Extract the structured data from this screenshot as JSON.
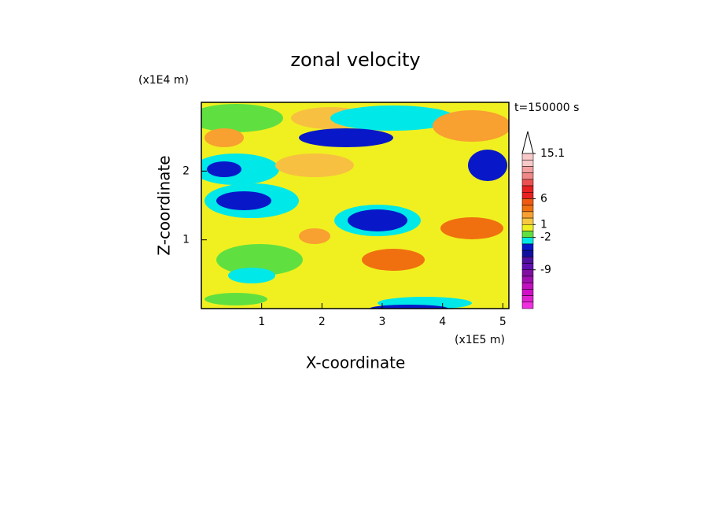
{
  "chart_data": {
    "type": "contour",
    "title": "zonal velocity",
    "xlabel": "X-coordinate",
    "ylabel": "Z-coordinate",
    "x_unit": "(x1E5 m)",
    "y_unit": "(x1E4 m)",
    "annotation": "t=150000 s",
    "xlim": [
      0,
      5.1
    ],
    "xticks": [
      1,
      2,
      3,
      4,
      5
    ],
    "ylim": [
      0,
      3
    ],
    "yticks": [
      1,
      2
    ],
    "colorbar": {
      "levels": [
        15.1,
        13.8,
        12.5,
        11.2,
        9.9,
        8.6,
        7.3,
        6,
        4.75,
        3.5,
        2.25,
        1,
        -0.5,
        -2,
        -3.4,
        -4.8,
        -6.2,
        -7.6,
        -9,
        -10.2,
        -11.4,
        -12.6,
        -13.8,
        -15,
        -16.2
      ],
      "colors": [
        "#f9c8c8",
        "#f9c8c8",
        "#f4a0a0",
        "#f08888",
        "#ec5050",
        "#e82020",
        "#e82020",
        "#f05a10",
        "#f07010",
        "#f8a030",
        "#f8c840",
        "#f0f020",
        "#60e040",
        "#00e8e8",
        "#0818c8",
        "#1010a0",
        "#5010a0",
        "#6010b0",
        "#8010a0",
        "#a010b0",
        "#c010c0",
        "#d010c8",
        "#e020d0",
        "#f030e0"
      ],
      "ticks": [
        15.1,
        6,
        1,
        -2,
        -9
      ]
    }
  }
}
